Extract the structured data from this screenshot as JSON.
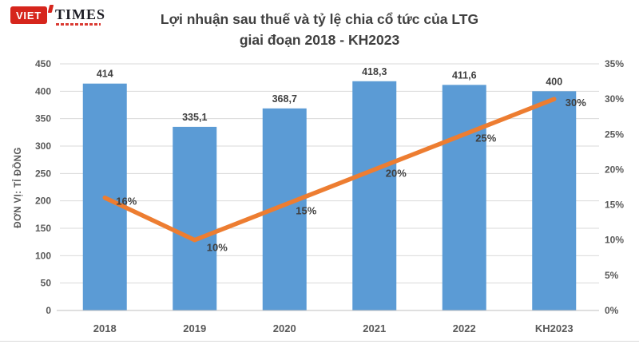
{
  "logo": {
    "viet": "VIET",
    "times": "TIMES"
  },
  "chart_data": {
    "type": "bar+line combo",
    "title_line1": "Lợi nhuận sau thuế và tỷ lệ chia cổ tức của LTG",
    "title_line2": "giai đoạn 2018 - KH2023",
    "categories": [
      "2018",
      "2019",
      "2020",
      "2021",
      "2022",
      "KH2023"
    ],
    "series": [
      {
        "name": "Lợi nhuận sau thuế",
        "type": "bar",
        "axis": "left",
        "color": "#5B9BD5",
        "values": [
          414,
          335.1,
          368.7,
          418.3,
          411.6,
          400
        ],
        "labels": [
          "414",
          "335,1",
          "368,7",
          "418,3",
          "411,6",
          "400"
        ]
      },
      {
        "name": "Tỷ lệ chia cổ tức",
        "type": "line",
        "axis": "right",
        "color": "#ED7D31",
        "values": [
          16,
          10,
          15,
          20,
          25,
          30
        ],
        "labels": [
          "16%",
          "10%",
          "15%",
          "20%",
          "25%",
          "30%"
        ]
      }
    ],
    "left_axis": {
      "title": "ĐƠN VỊ: TỈ ĐỒNG",
      "min": 0,
      "max": 450,
      "step": 50,
      "tick_labels": [
        "0",
        "50",
        "100",
        "150",
        "200",
        "250",
        "300",
        "350",
        "400",
        "450"
      ]
    },
    "right_axis": {
      "min": 0,
      "max": 35,
      "step": 5,
      "tick_labels": [
        "0%",
        "5%",
        "10%",
        "15%",
        "20%",
        "25%",
        "30%",
        "35%"
      ]
    },
    "grid": true,
    "legend": "none",
    "colors": {
      "bar": "#5B9BD5",
      "line": "#ED7D31",
      "gridline": "#D9D9D9",
      "axis_line": "#BFBFBF",
      "text_dark": "#404040",
      "text_gray": "#595959",
      "logo_red": "#d6251c"
    }
  }
}
